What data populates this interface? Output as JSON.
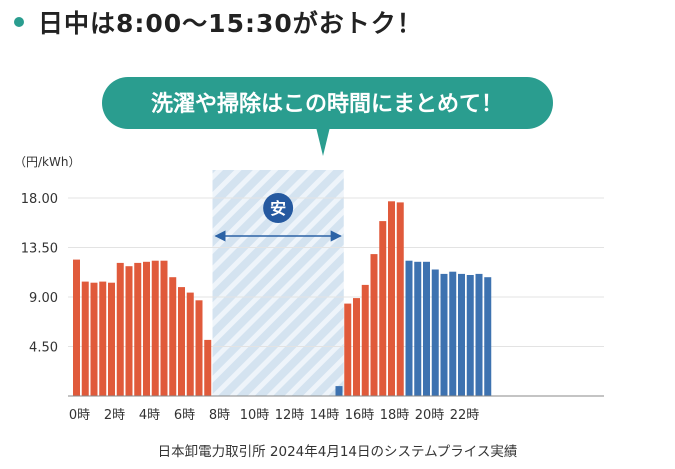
{
  "headline": "日中は8:00〜15:30がおトク！",
  "callout": "洗濯や掃除はこの時間にまとめて！",
  "badge": "安",
  "caption": "日本卸電力取引所 2024年4月14日のシステムプライス実績",
  "colors": {
    "accent": "#2a9d8f",
    "red_bar": "#e05a3b",
    "blue_bar": "#3d72b0",
    "cheap_zone": "#d4e3f0",
    "arrow": "#2c63a6"
  },
  "chart_data": {
    "type": "bar",
    "unit_label": "（円/kWh）",
    "y_ticks": [
      "18.00",
      "13.50",
      "9.00",
      "4.50"
    ],
    "ylim": [
      0,
      18.0
    ],
    "x_tick_labels": [
      "0時",
      "2時",
      "4時",
      "6時",
      "8時",
      "10時",
      "12時",
      "14時",
      "16時",
      "18時",
      "20時",
      "22時"
    ],
    "highlight_range": [
      "8:00",
      "15:30"
    ],
    "series": [
      {
        "color_group": "red",
        "points": [
          {
            "hour": 0.0,
            "value": 12.4
          },
          {
            "hour": 0.5,
            "value": 10.4
          },
          {
            "hour": 1.0,
            "value": 10.3
          },
          {
            "hour": 1.5,
            "value": 10.4
          },
          {
            "hour": 2.0,
            "value": 10.3
          },
          {
            "hour": 2.5,
            "value": 12.1
          },
          {
            "hour": 3.0,
            "value": 11.8
          },
          {
            "hour": 3.5,
            "value": 12.1
          },
          {
            "hour": 4.0,
            "value": 12.2
          },
          {
            "hour": 4.5,
            "value": 12.3
          },
          {
            "hour": 5.0,
            "value": 12.3
          },
          {
            "hour": 5.5,
            "value": 10.8
          },
          {
            "hour": 6.0,
            "value": 9.9
          },
          {
            "hour": 6.5,
            "value": 9.4
          },
          {
            "hour": 7.0,
            "value": 8.7
          },
          {
            "hour": 7.5,
            "value": 5.1
          }
        ]
      },
      {
        "color_group": "blue",
        "points": [
          {
            "hour": 15.0,
            "value": 0.9
          }
        ]
      },
      {
        "color_group": "red",
        "points": [
          {
            "hour": 15.5,
            "value": 8.4
          },
          {
            "hour": 16.0,
            "value": 8.9
          },
          {
            "hour": 16.5,
            "value": 10.1
          },
          {
            "hour": 17.0,
            "value": 12.9
          },
          {
            "hour": 17.5,
            "value": 15.9
          },
          {
            "hour": 18.0,
            "value": 17.7
          },
          {
            "hour": 18.5,
            "value": 17.6
          }
        ]
      },
      {
        "color_group": "blue",
        "points": [
          {
            "hour": 19.0,
            "value": 12.3
          },
          {
            "hour": 19.5,
            "value": 12.2
          },
          {
            "hour": 20.0,
            "value": 12.2
          },
          {
            "hour": 20.5,
            "value": 11.5
          },
          {
            "hour": 21.0,
            "value": 11.1
          },
          {
            "hour": 21.5,
            "value": 11.3
          },
          {
            "hour": 22.0,
            "value": 11.1
          },
          {
            "hour": 22.5,
            "value": 11.0
          },
          {
            "hour": 23.0,
            "value": 11.1
          },
          {
            "hour": 23.5,
            "value": 10.8
          }
        ]
      }
    ]
  }
}
